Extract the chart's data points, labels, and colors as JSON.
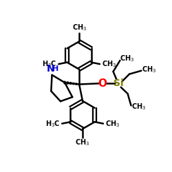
{
  "bg_color": "#ffffff",
  "bond_color": "#000000",
  "bond_lw": 1.8,
  "NH_color": "#0000cc",
  "O_color": "#ff0000",
  "Si_color": "#808000",
  "text_color": "#000000",
  "figsize": [
    2.5,
    2.5
  ],
  "dpi": 100,
  "xlim": [
    0,
    10
  ],
  "ylim": [
    0,
    10
  ]
}
